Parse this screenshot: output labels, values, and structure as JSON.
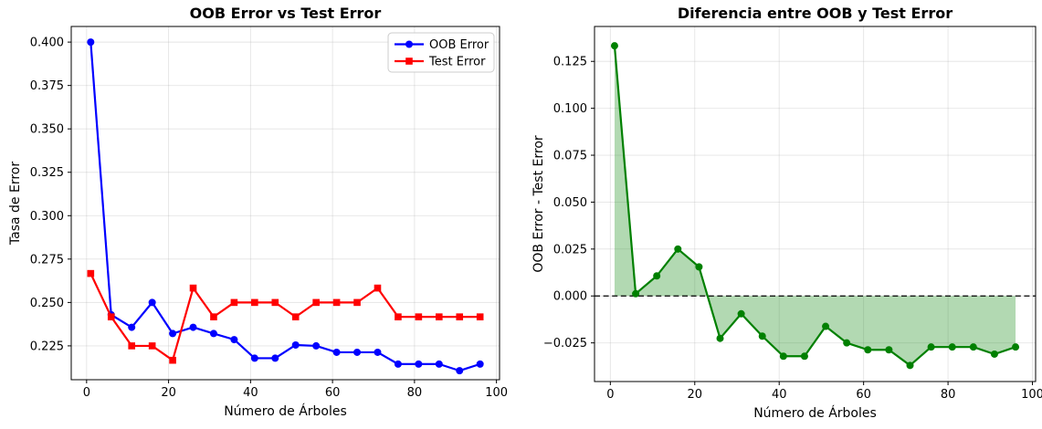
{
  "figure_title": "",
  "accent_colors": {
    "oob_blue": "#0000ff",
    "test_red": "#ff0000",
    "diff_green": "#008000",
    "grid_gray": "#b0b0b0",
    "zero_line_black": "#000000"
  },
  "chart_data": [
    {
      "id": "chart-oob-vs-test",
      "type": "line",
      "title": "OOB Error vs Test Error",
      "xlabel": "Número de Árboles",
      "ylabel": "Tasa de Error",
      "xlim": [
        -3.75,
        100.75
      ],
      "ylim": [
        0.2055,
        0.409
      ],
      "grid": true,
      "xticks": [
        {
          "v": 0,
          "label": "0"
        },
        {
          "v": 20,
          "label": "20"
        },
        {
          "v": 40,
          "label": "40"
        },
        {
          "v": 60,
          "label": "60"
        },
        {
          "v": 80,
          "label": "80"
        },
        {
          "v": 100,
          "label": "100"
        }
      ],
      "yticks": [
        {
          "v": 0.225,
          "label": "0.225"
        },
        {
          "v": 0.25,
          "label": "0.250"
        },
        {
          "v": 0.275,
          "label": "0.275"
        },
        {
          "v": 0.3,
          "label": "0.300"
        },
        {
          "v": 0.325,
          "label": "0.325"
        },
        {
          "v": 0.35,
          "label": "0.350"
        },
        {
          "v": 0.375,
          "label": "0.375"
        },
        {
          "v": 0.4,
          "label": "0.400"
        }
      ],
      "x": [
        1,
        6,
        11,
        16,
        21,
        26,
        31,
        36,
        41,
        46,
        51,
        56,
        61,
        66,
        71,
        76,
        81,
        86,
        91,
        96
      ],
      "series": [
        {
          "id": "oob-error",
          "name": "OOB Error",
          "color": "#0000ff",
          "marker": "circle",
          "values": [
            0.4,
            0.2429,
            0.2357,
            0.25,
            0.2321,
            0.2357,
            0.2321,
            0.2286,
            0.2179,
            0.2179,
            0.2255,
            0.225,
            0.2213,
            0.2213,
            0.2213,
            0.2145,
            0.2145,
            0.2145,
            0.2107,
            0.2145
          ]
        },
        {
          "id": "test-error",
          "name": "Test Error",
          "color": "#ff0000",
          "marker": "square",
          "values": [
            0.2667,
            0.2417,
            0.225,
            0.225,
            0.2167,
            0.2583,
            0.2417,
            0.25,
            0.25,
            0.25,
            0.2417,
            0.25,
            0.25,
            0.25,
            0.2583,
            0.2417,
            0.2417,
            0.2417,
            0.2417,
            0.2417
          ]
        }
      ],
      "legend": {
        "position": "upper right",
        "entries": [
          {
            "label": "OOB Error",
            "color": "#0000ff",
            "marker": "circle"
          },
          {
            "label": "Test Error",
            "color": "#ff0000",
            "marker": "square"
          }
        ]
      }
    },
    {
      "id": "chart-difference",
      "type": "line-area",
      "title": "Diferencia entre OOB y Test Error",
      "xlabel": "Número de Árboles",
      "ylabel": "OOB Error - Test Error",
      "xlim": [
        -3.75,
        100.75
      ],
      "ylim": [
        -0.0456,
        0.1436
      ],
      "grid": true,
      "zero_line": true,
      "xticks": [
        {
          "v": 0,
          "label": "0"
        },
        {
          "v": 20,
          "label": "20"
        },
        {
          "v": 40,
          "label": "40"
        },
        {
          "v": 60,
          "label": "60"
        },
        {
          "v": 80,
          "label": "80"
        },
        {
          "v": 100,
          "label": "100"
        }
      ],
      "yticks": [
        {
          "v": -0.025,
          "label": "−0.025"
        },
        {
          "v": 0.0,
          "label": "0.000"
        },
        {
          "v": 0.025,
          "label": "0.025"
        },
        {
          "v": 0.05,
          "label": "0.050"
        },
        {
          "v": 0.075,
          "label": "0.075"
        },
        {
          "v": 0.1,
          "label": "0.100"
        },
        {
          "v": 0.125,
          "label": "0.125"
        }
      ],
      "x": [
        1,
        6,
        11,
        16,
        21,
        26,
        31,
        36,
        41,
        46,
        51,
        56,
        61,
        66,
        71,
        76,
        81,
        86,
        91,
        96
      ],
      "series": [
        {
          "id": "difference",
          "name": "OOB Error - Test Error",
          "color": "#008000",
          "marker": "circle",
          "fill_to": 0,
          "fill_opacity": 0.3,
          "values": [
            0.1333,
            0.0012,
            0.0107,
            0.025,
            0.0155,
            -0.0226,
            -0.0095,
            -0.0214,
            -0.0321,
            -0.0321,
            -0.0162,
            -0.025,
            -0.0287,
            -0.0287,
            -0.037,
            -0.0272,
            -0.0272,
            -0.0272,
            -0.031,
            -0.0272
          ]
        }
      ]
    }
  ]
}
